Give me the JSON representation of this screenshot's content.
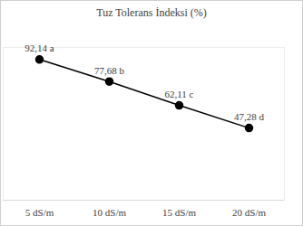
{
  "chart_data": {
    "type": "line",
    "title": "Tuz Tolerans İndeksi (%)",
    "categories": [
      "5 dS/m",
      "10 dS/m",
      "15 dS/m",
      "20 dS/m"
    ],
    "values": [
      92.14,
      77.68,
      62.11,
      47.28
    ],
    "value_labels": [
      "92,14 a",
      "77,68 b",
      "62,11 c",
      "47,28 d"
    ],
    "color": "#000000",
    "marker": "circle",
    "line_style": "solid",
    "ylim": [
      0,
      100
    ],
    "grid": false,
    "data_labels": true,
    "tick_labels": "x"
  }
}
